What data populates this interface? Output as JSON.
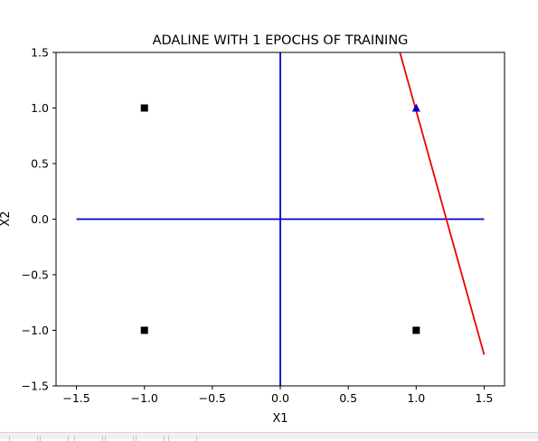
{
  "chart_data": {
    "type": "scatter",
    "title": "ADALINE WITH 1 EPOCHS OF TRAINING",
    "xlabel": "X1",
    "ylabel": "X2",
    "xlim": [
      -1.65,
      1.65
    ],
    "ylim": [
      -1.5,
      1.5
    ],
    "xticks": [
      -1.5,
      -1.0,
      -0.5,
      0.0,
      0.5,
      1.0,
      1.5
    ],
    "xtick_labels": [
      "−1.5",
      "−1.0",
      "−0.5",
      "0.0",
      "0.5",
      "1.0",
      "1.5"
    ],
    "yticks": [
      -1.5,
      -1.0,
      -0.5,
      0.0,
      0.5,
      1.0,
      1.5
    ],
    "ytick_labels": [
      "−1.5",
      "−1.0",
      "−0.5",
      "0.0",
      "0.5",
      "1.0",
      "1.5"
    ],
    "grid": false,
    "points": [
      {
        "x": -1,
        "y": 1,
        "marker": "square",
        "color": "#000000"
      },
      {
        "x": -1,
        "y": -1,
        "marker": "square",
        "color": "#000000"
      },
      {
        "x": 1,
        "y": -1,
        "marker": "square",
        "color": "#000000"
      },
      {
        "x": 1,
        "y": 1,
        "marker": "triangle",
        "color": "#0000cc"
      }
    ],
    "lines": [
      {
        "x": [
          -1.5,
          1.5
        ],
        "y": [
          0,
          0
        ],
        "color": "#0000cc"
      },
      {
        "x": [
          0,
          0
        ],
        "y": [
          -1.5,
          1.5
        ],
        "color": "#0000cc"
      },
      {
        "x": [
          0.88,
          1.5
        ],
        "y": [
          1.5,
          -1.22
        ],
        "color": "#ee0000"
      }
    ]
  }
}
